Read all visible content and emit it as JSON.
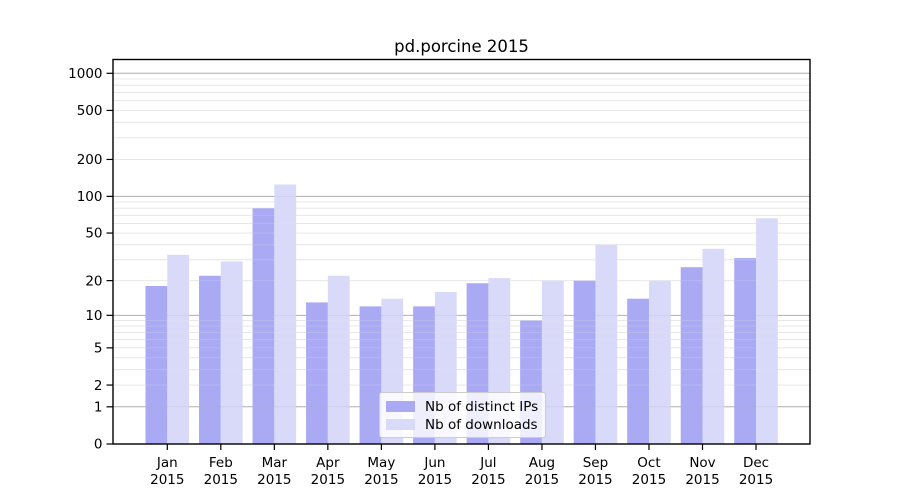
{
  "figure": {
    "background": "#ffffff"
  },
  "chart_data": {
    "type": "bar",
    "title": "pd.porcine 2015",
    "xlabel": "",
    "ylabel": "",
    "scale": "log1p",
    "grid": true,
    "categories": [
      "Jan",
      "Feb",
      "Mar",
      "Apr",
      "May",
      "Jun",
      "Jul",
      "Aug",
      "Sep",
      "Oct",
      "Nov",
      "Dec"
    ],
    "category_year": "2015",
    "series": [
      {
        "name": "Nb of distinct IPs",
        "color": "#aaaaf4",
        "values": [
          18,
          22,
          80,
          13,
          12,
          12,
          19,
          9,
          20,
          14,
          26,
          31
        ]
      },
      {
        "name": "Nb of downloads",
        "color": "#d9d9fa",
        "values": [
          33,
          29,
          125,
          22,
          14,
          16,
          21,
          20,
          40,
          20,
          37,
          66
        ]
      }
    ],
    "y_ticks": [
      0,
      1,
      2,
      5,
      10,
      20,
      50,
      100,
      200,
      500,
      1000
    ],
    "ylim": [
      0,
      1300
    ],
    "legend_position": "bottom-center"
  },
  "colors": {
    "major_grid": "#b3b3b3",
    "minor_grid": "#e6e6e6",
    "axis": "#000000",
    "text": "#000000",
    "legend_border": "#cccccc"
  }
}
